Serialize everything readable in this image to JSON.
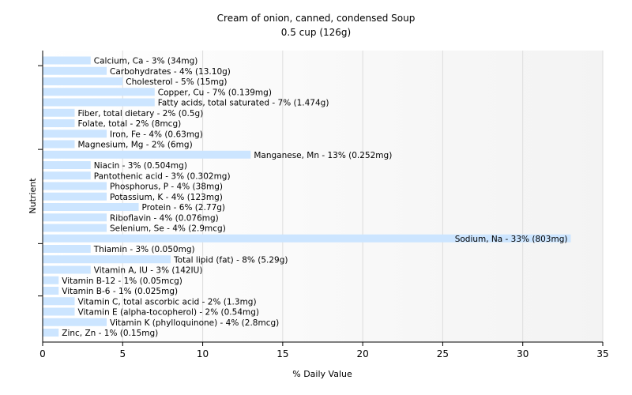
{
  "chart_data": {
    "type": "bar",
    "orientation": "horizontal",
    "title": "Cream of onion, canned, condensed Soup",
    "subtitle": "0.5 cup (126g)",
    "xlabel": "% Daily Value",
    "ylabel": "Nutrient",
    "xlim": [
      0,
      35
    ],
    "xticks": [
      0,
      5,
      10,
      15,
      20,
      25,
      30,
      35
    ],
    "grid": true,
    "bar_color": "#cce5ff",
    "categories": [
      "Calcium, Ca",
      "Carbohydrates",
      "Cholesterol",
      "Copper, Cu",
      "Fatty acids, total saturated",
      "Fiber, total dietary",
      "Folate, total",
      "Iron, Fe",
      "Magnesium, Mg",
      "Manganese, Mn",
      "Niacin",
      "Pantothenic acid",
      "Phosphorus, P",
      "Potassium, K",
      "Protein",
      "Riboflavin",
      "Selenium, Se",
      "Sodium, Na",
      "Thiamin",
      "Total lipid (fat)",
      "Vitamin A, IU",
      "Vitamin B-12",
      "Vitamin B-6",
      "Vitamin C, total ascorbic acid",
      "Vitamin E (alpha-tocopherol)",
      "Vitamin K (phylloquinone)",
      "Zinc, Zn"
    ],
    "values": [
      3,
      4,
      5,
      7,
      7,
      2,
      2,
      4,
      2,
      13,
      3,
      3,
      4,
      4,
      6,
      4,
      4,
      33,
      3,
      8,
      3,
      1,
      1,
      2,
      2,
      4,
      1
    ],
    "labels": [
      "Calcium, Ca - 3% (34mg)",
      "Carbohydrates - 4% (13.10g)",
      "Cholesterol - 5% (15mg)",
      "Copper, Cu - 7% (0.139mg)",
      "Fatty acids, total saturated - 7% (1.474g)",
      "Fiber, total dietary - 2% (0.5g)",
      "Folate, total - 2% (8mcg)",
      "Iron, Fe - 4% (0.63mg)",
      "Magnesium, Mg - 2% (6mg)",
      "Manganese, Mn - 13% (0.252mg)",
      "Niacin - 3% (0.504mg)",
      "Pantothenic acid - 3% (0.302mg)",
      "Phosphorus, P - 4% (38mg)",
      "Potassium, K - 4% (123mg)",
      "Protein - 6% (2.77g)",
      "Riboflavin - 4% (0.076mg)",
      "Selenium, Se - 4% (2.9mcg)",
      "Sodium, Na - 33% (803mg)",
      "Thiamin - 3% (0.050mg)",
      "Total lipid (fat) - 8% (5.29g)",
      "Vitamin A, IU - 3% (142IU)",
      "Vitamin B-12 - 1% (0.05mcg)",
      "Vitamin B-6 - 1% (0.025mg)",
      "Vitamin C, total ascorbic acid - 2% (1.3mg)",
      "Vitamin E (alpha-tocopherol) - 2% (0.54mg)",
      "Vitamin K (phylloquinone) - 4% (2.8mcg)",
      "Zinc, Zn - 1% (0.15mg)"
    ]
  }
}
